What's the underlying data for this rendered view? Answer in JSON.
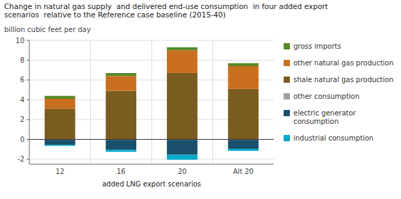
{
  "chart_data": {
    "type": "bar",
    "stacked": true,
    "title": "Change in natural gas supply  and delivered end-use consumption  in four added export\nscenarios  relative to the Reference case baseline (2015-40)",
    "y_label": "billion cubic feet per day",
    "x_label": "added LNG export scenarios",
    "categories": [
      "12",
      "16",
      "20",
      "Alt 20"
    ],
    "series": [
      {
        "name": "shale natural gas production",
        "color": "#7a5c1e",
        "values": [
          3.1,
          4.9,
          6.7,
          5.1
        ]
      },
      {
        "name": "other natural gas production",
        "color": "#c87020",
        "values": [
          1.0,
          1.5,
          2.3,
          2.3
        ]
      },
      {
        "name": "gross imports",
        "color": "#5a8a2a",
        "values": [
          0.3,
          0.3,
          0.3,
          0.3
        ]
      },
      {
        "name": "other consumption",
        "color": "#a0a0a0",
        "values": [
          -0.05,
          -0.05,
          -0.05,
          -0.05
        ]
      },
      {
        "name": "electric generator\nconsumption",
        "color": "#1a4f6e",
        "values": [
          -0.5,
          -1.0,
          -1.5,
          -0.9
        ]
      },
      {
        "name": "industrial consumption",
        "color": "#00aacc",
        "values": [
          -0.1,
          -0.2,
          -0.5,
          -0.2
        ]
      }
    ],
    "ylim": [
      -2.5,
      10
    ],
    "yticks": [
      -2,
      0,
      2,
      4,
      6,
      8,
      10
    ],
    "grid": true,
    "legend": "right"
  }
}
